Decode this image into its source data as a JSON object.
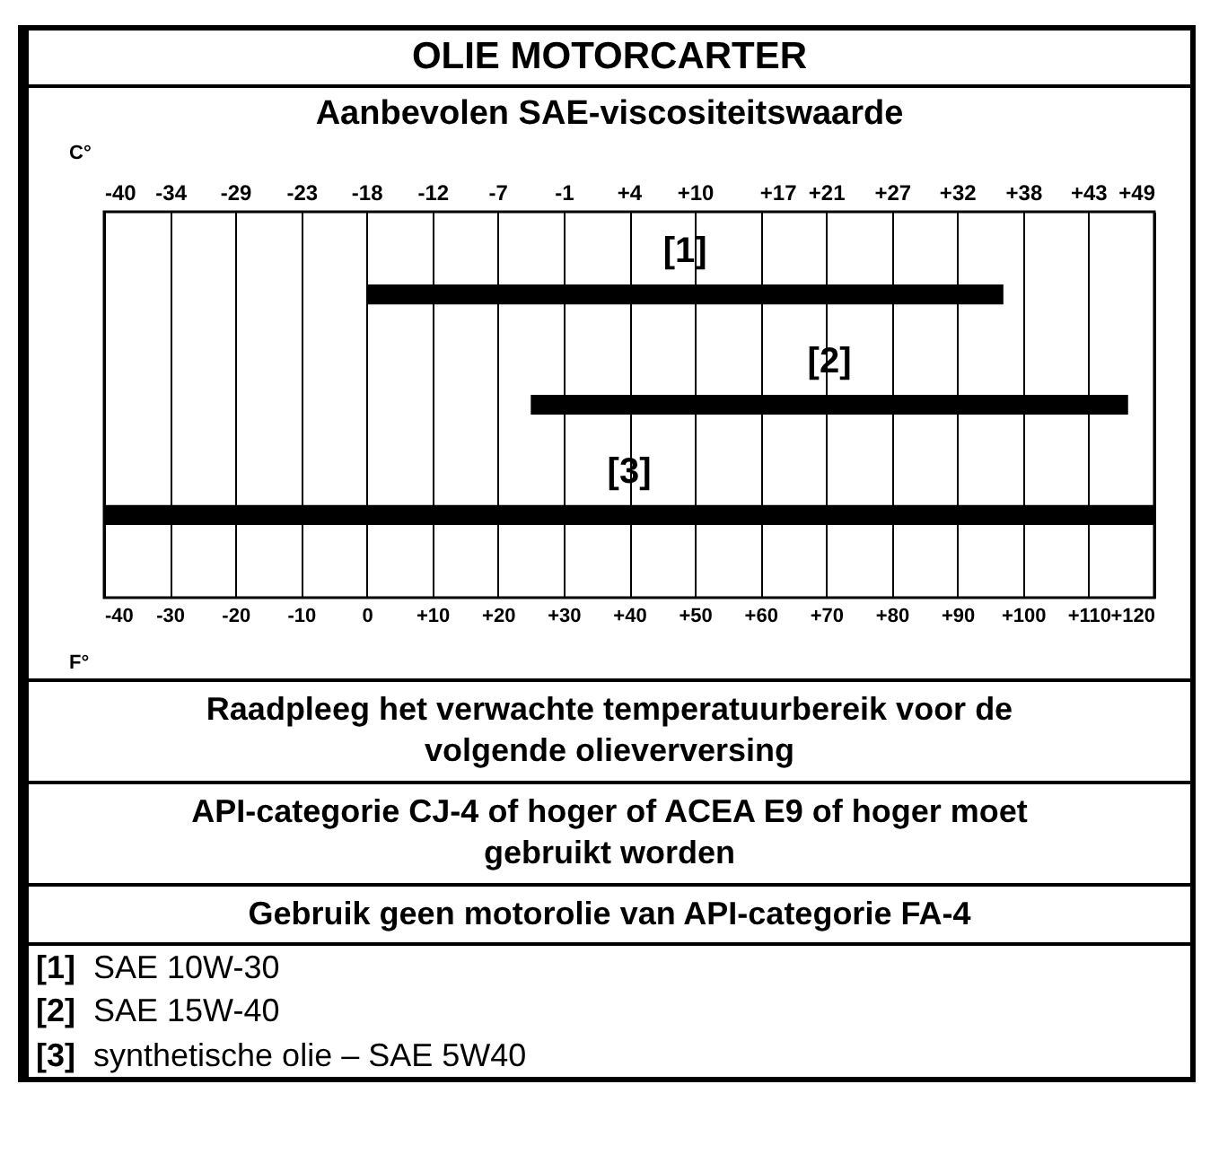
{
  "chart_data": {
    "type": "bar",
    "orientation": "horizontal",
    "title": "OLIE MOTORCARTER",
    "subtitle": "Aanbevolen SAE-viscositeitswaarde",
    "categories": [
      "[1]",
      "[2]",
      "[3]"
    ],
    "base": [
      0,
      25,
      -40
    ],
    "values": [
      97,
      91,
      160
    ],
    "colors": [
      "#000000",
      "#000000",
      "#000000"
    ],
    "xlabel": "F°",
    "x2label": "C°",
    "xlim": [
      -40,
      120
    ],
    "xticks": [
      -40,
      -30,
      -20,
      -10,
      0,
      {
        "value": 10,
        "label": "+10"
      },
      {
        "value": 20,
        "label": "+20"
      },
      {
        "value": 30,
        "label": "+30"
      },
      {
        "value": 40,
        "label": "+40"
      },
      {
        "value": 50,
        "label": "+50"
      },
      {
        "value": 60,
        "label": "+60"
      },
      {
        "value": 70,
        "label": "+70"
      },
      {
        "value": 80,
        "label": "+80"
      },
      {
        "value": 90,
        "label": "+90"
      },
      {
        "value": 100,
        "label": "+100"
      },
      {
        "value": 110,
        "label": "+110"
      },
      {
        "value": 120,
        "label": "+120"
      }
    ],
    "x2lim": [
      -40,
      48.9
    ],
    "x2ticks": [
      -40,
      {
        "value": -34.4,
        "label": "-34"
      },
      {
        "value": -28.9,
        "label": "-29"
      },
      {
        "value": -23.3,
        "label": "-23"
      },
      {
        "value": -17.8,
        "label": "-18"
      },
      {
        "value": -12.2,
        "label": "-12"
      },
      {
        "value": -6.7,
        "label": "-7"
      },
      {
        "value": -1.1,
        "label": "-1"
      },
      {
        "value": 4.4,
        "label": "+4"
      },
      {
        "value": 10,
        "label": "+10"
      },
      {
        "value": 17,
        "label": "+17"
      },
      {
        "value": 21.1,
        "label": "+21"
      },
      {
        "value": 26.7,
        "label": "+27"
      },
      {
        "value": 32.2,
        "label": "+32"
      },
      {
        "value": 37.8,
        "label": "+38"
      },
      {
        "value": 43.3,
        "label": "+43"
      },
      {
        "value": 48.9,
        "label": "+49"
      }
    ],
    "grid": "x",
    "annotations": [
      "Raadpleeg het verwachte temperatuurbereik voor de volgende olieverversing",
      "API-categorie CJ-4 of hoger of ACEA E9 of hoger moet gebruikt worden",
      "Gebruik geen motorolie van API-categorie FA-4",
      "[1] SAE 10W-30",
      "[2] SAE 15W-40",
      "[3] synthetische olie – SAE 5W40"
    ]
  }
}
